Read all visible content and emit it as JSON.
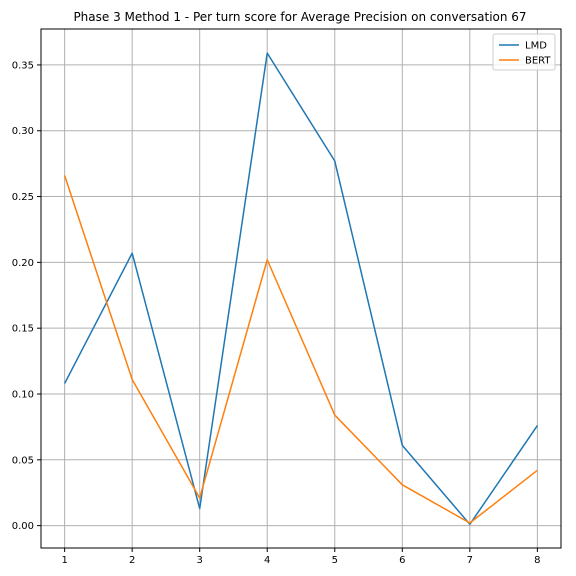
{
  "chart_data": {
    "type": "line",
    "title": "Phase 3 Method 1 - Per turn score for Average Precision on conversation 67",
    "xlabel": "",
    "ylabel": "",
    "x": [
      1,
      2,
      3,
      4,
      5,
      6,
      7,
      8
    ],
    "xticks": [
      "1",
      "2",
      "3",
      "4",
      "5",
      "6",
      "7",
      "8"
    ],
    "xlim": [
      0.65,
      8.35
    ],
    "ylim": [
      -0.017,
      0.3773
    ],
    "yticks": [
      "0.00",
      "0.05",
      "0.10",
      "0.15",
      "0.20",
      "0.25",
      "0.30",
      "0.35"
    ],
    "grid": true,
    "legend_position": "top-right",
    "series": [
      {
        "name": "LMD",
        "color": "#1f77b4",
        "values": [
          0.108,
          0.207,
          0.013,
          0.359,
          0.277,
          0.061,
          0.001,
          0.076
        ]
      },
      {
        "name": "BERT",
        "color": "#ff7f0e",
        "values": [
          0.266,
          0.111,
          0.021,
          0.202,
          0.084,
          0.031,
          0.002,
          0.042
        ]
      }
    ]
  }
}
